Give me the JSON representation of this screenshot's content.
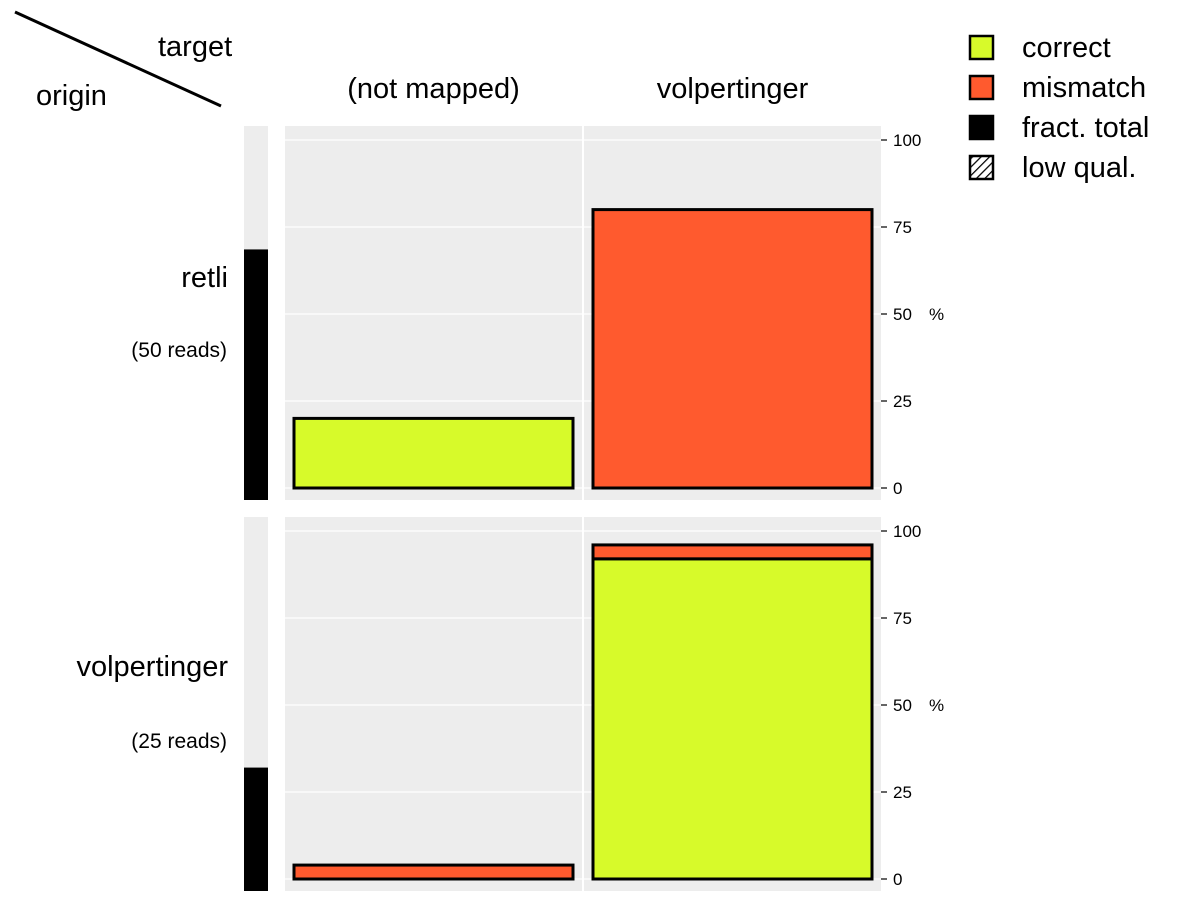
{
  "corner": {
    "target_label": "target",
    "origin_label": "origin"
  },
  "colors": {
    "correct": "#d7fa2a",
    "mismatch": "#ff5a2e",
    "fraction": "#000000",
    "panel_bg": "#ededed",
    "grid": "#ffffff"
  },
  "legend": [
    {
      "key": "correct",
      "label": "correct",
      "swatch": "correct-swatch"
    },
    {
      "key": "mismatch",
      "label": "mismatch",
      "swatch": "mismatch-swatch"
    },
    {
      "key": "fraction",
      "label": "fract. total",
      "swatch": "fraction-swatch"
    },
    {
      "key": "lowqual",
      "label": "low qual.",
      "swatch": "hatched-swatch"
    }
  ],
  "chart_data": {
    "type": "bar",
    "columns": [
      "(not mapped)",
      "volpertinger"
    ],
    "y_ticks": [
      "0",
      "25",
      "50",
      "75",
      "100"
    ],
    "y_unit": "%",
    "ylim": [
      0,
      100
    ],
    "grid": true,
    "legend_position": "top-right",
    "rows": [
      {
        "origin": "retli",
        "reads_label": "(50 reads)",
        "fraction_total": 0.67,
        "cells": [
          {
            "target": "(not mapped)",
            "correct": 20,
            "mismatch": 0
          },
          {
            "target": "volpertinger",
            "correct": 0,
            "mismatch": 80
          }
        ]
      },
      {
        "origin": "volpertinger",
        "reads_label": "(25 reads)",
        "fraction_total": 0.33,
        "cells": [
          {
            "target": "(not mapped)",
            "correct": 0,
            "mismatch": 4
          },
          {
            "target": "volpertinger",
            "correct": 92,
            "mismatch": 4
          }
        ]
      }
    ]
  }
}
